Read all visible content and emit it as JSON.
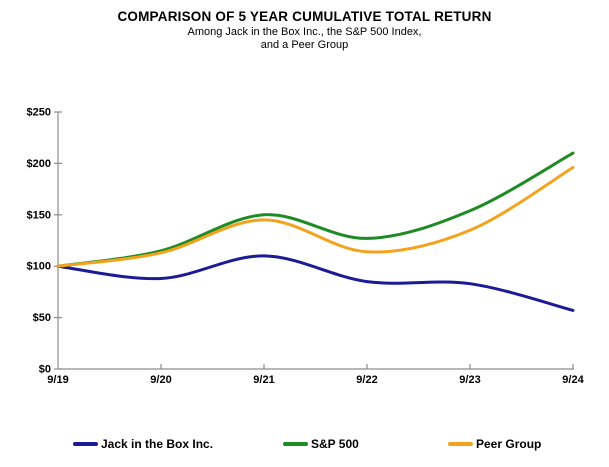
{
  "header": {
    "title": "COMPARISON OF 5 YEAR CUMULATIVE TOTAL RETURN",
    "subtitle_lines": [
      "Among Jack in the Box Inc., the S&P 500 Index,",
      "and a Peer Group"
    ]
  },
  "chart_data": {
    "type": "line",
    "title": "COMPARISON OF 5 YEAR CUMULATIVE TOTAL RETURN",
    "subtitle": "Among Jack in the Box Inc., the S&P 500 Index, and a Peer Group",
    "x_ticklabels": [
      "9/19",
      "9/20",
      "9/21",
      "9/22",
      "9/23",
      "9/24"
    ],
    "y_ticklabels": [
      "$0",
      "$50",
      "$100",
      "$150",
      "$200",
      "$250"
    ],
    "ylim": [
      0,
      250
    ],
    "y_tick_step": 50,
    "grid": false,
    "line_style": "smooth",
    "legend_position": "bottom",
    "axis_color": "#8c8c8c",
    "text_color": "#000000",
    "series": [
      {
        "name": "Jack in the Box Inc.",
        "color": "#1b1b96",
        "values": [
          100,
          88,
          110,
          85,
          83,
          57
        ]
      },
      {
        "name": "S&P 500",
        "color": "#1f8b24",
        "values": [
          100,
          115,
          150,
          127,
          154,
          210
        ]
      },
      {
        "name": "Peer Group",
        "color": "#f3a21d",
        "values": [
          100,
          113,
          145,
          114,
          135,
          196
        ]
      }
    ]
  }
}
